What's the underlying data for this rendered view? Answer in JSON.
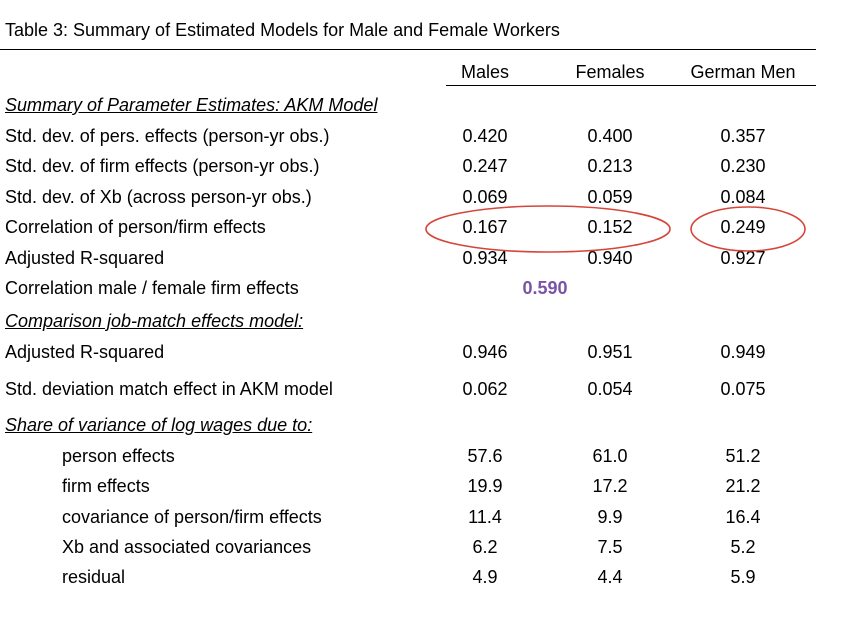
{
  "title": "Table 3:  Summary of Estimated Models for Male and Female Workers",
  "columns": [
    "Males",
    "Females",
    "German Men"
  ],
  "rows": [
    {
      "label": "Summary of Parameter Estimates: AKM Model",
      "section": true
    },
    {
      "label": "Std. dev. of pers. effects (person-yr obs.)",
      "values": [
        "0.420",
        "0.400",
        "0.357"
      ]
    },
    {
      "label": "Std. dev. of firm effects (person-yr obs.)",
      "values": [
        "0.247",
        "0.213",
        "0.230"
      ]
    },
    {
      "label": "Std. dev. of Xb (across person-yr obs.)",
      "values": [
        "0.069",
        "0.059",
        "0.084"
      ]
    },
    {
      "label": "Correlation of person/firm effects",
      "values": [
        "0.167",
        "0.152",
        "0.249"
      ]
    },
    {
      "label": "Adjusted R-squared",
      "values": [
        "0.934",
        "0.940",
        "0.927"
      ]
    },
    {
      "label": "Correlation male / female firm effects",
      "merged_value": "0.590"
    },
    {
      "label": "Comparison job-match effects model:",
      "section": true
    },
    {
      "label": "Adjusted R-squared",
      "values": [
        "0.946",
        "0.951",
        "0.949"
      ]
    },
    {
      "label": "Std. deviation match effect in AKM model",
      "values": [
        "0.062",
        "0.054",
        "0.075"
      ]
    },
    {
      "label": "Share of variance of log wages due to:",
      "section": true
    },
    {
      "label": "person effects",
      "indent": true,
      "values": [
        "57.6",
        "61.0",
        "51.2"
      ]
    },
    {
      "label": "firm effects",
      "indent": true,
      "values": [
        "19.9",
        "17.2",
        "21.2"
      ]
    },
    {
      "label": "covariance of person/firm effects",
      "indent": true,
      "values": [
        "11.4",
        "9.9",
        "16.4"
      ]
    },
    {
      "label": "Xb and associated covariances",
      "indent": true,
      "values": [
        "6.2",
        "7.5",
        "5.2"
      ]
    },
    {
      "label": "residual",
      "indent": true,
      "values": [
        "4.9",
        "4.4",
        "5.9"
      ]
    }
  ],
  "colors": {
    "highlight_value": "#7a53a8",
    "annotation_ellipse": "#d6453a"
  }
}
